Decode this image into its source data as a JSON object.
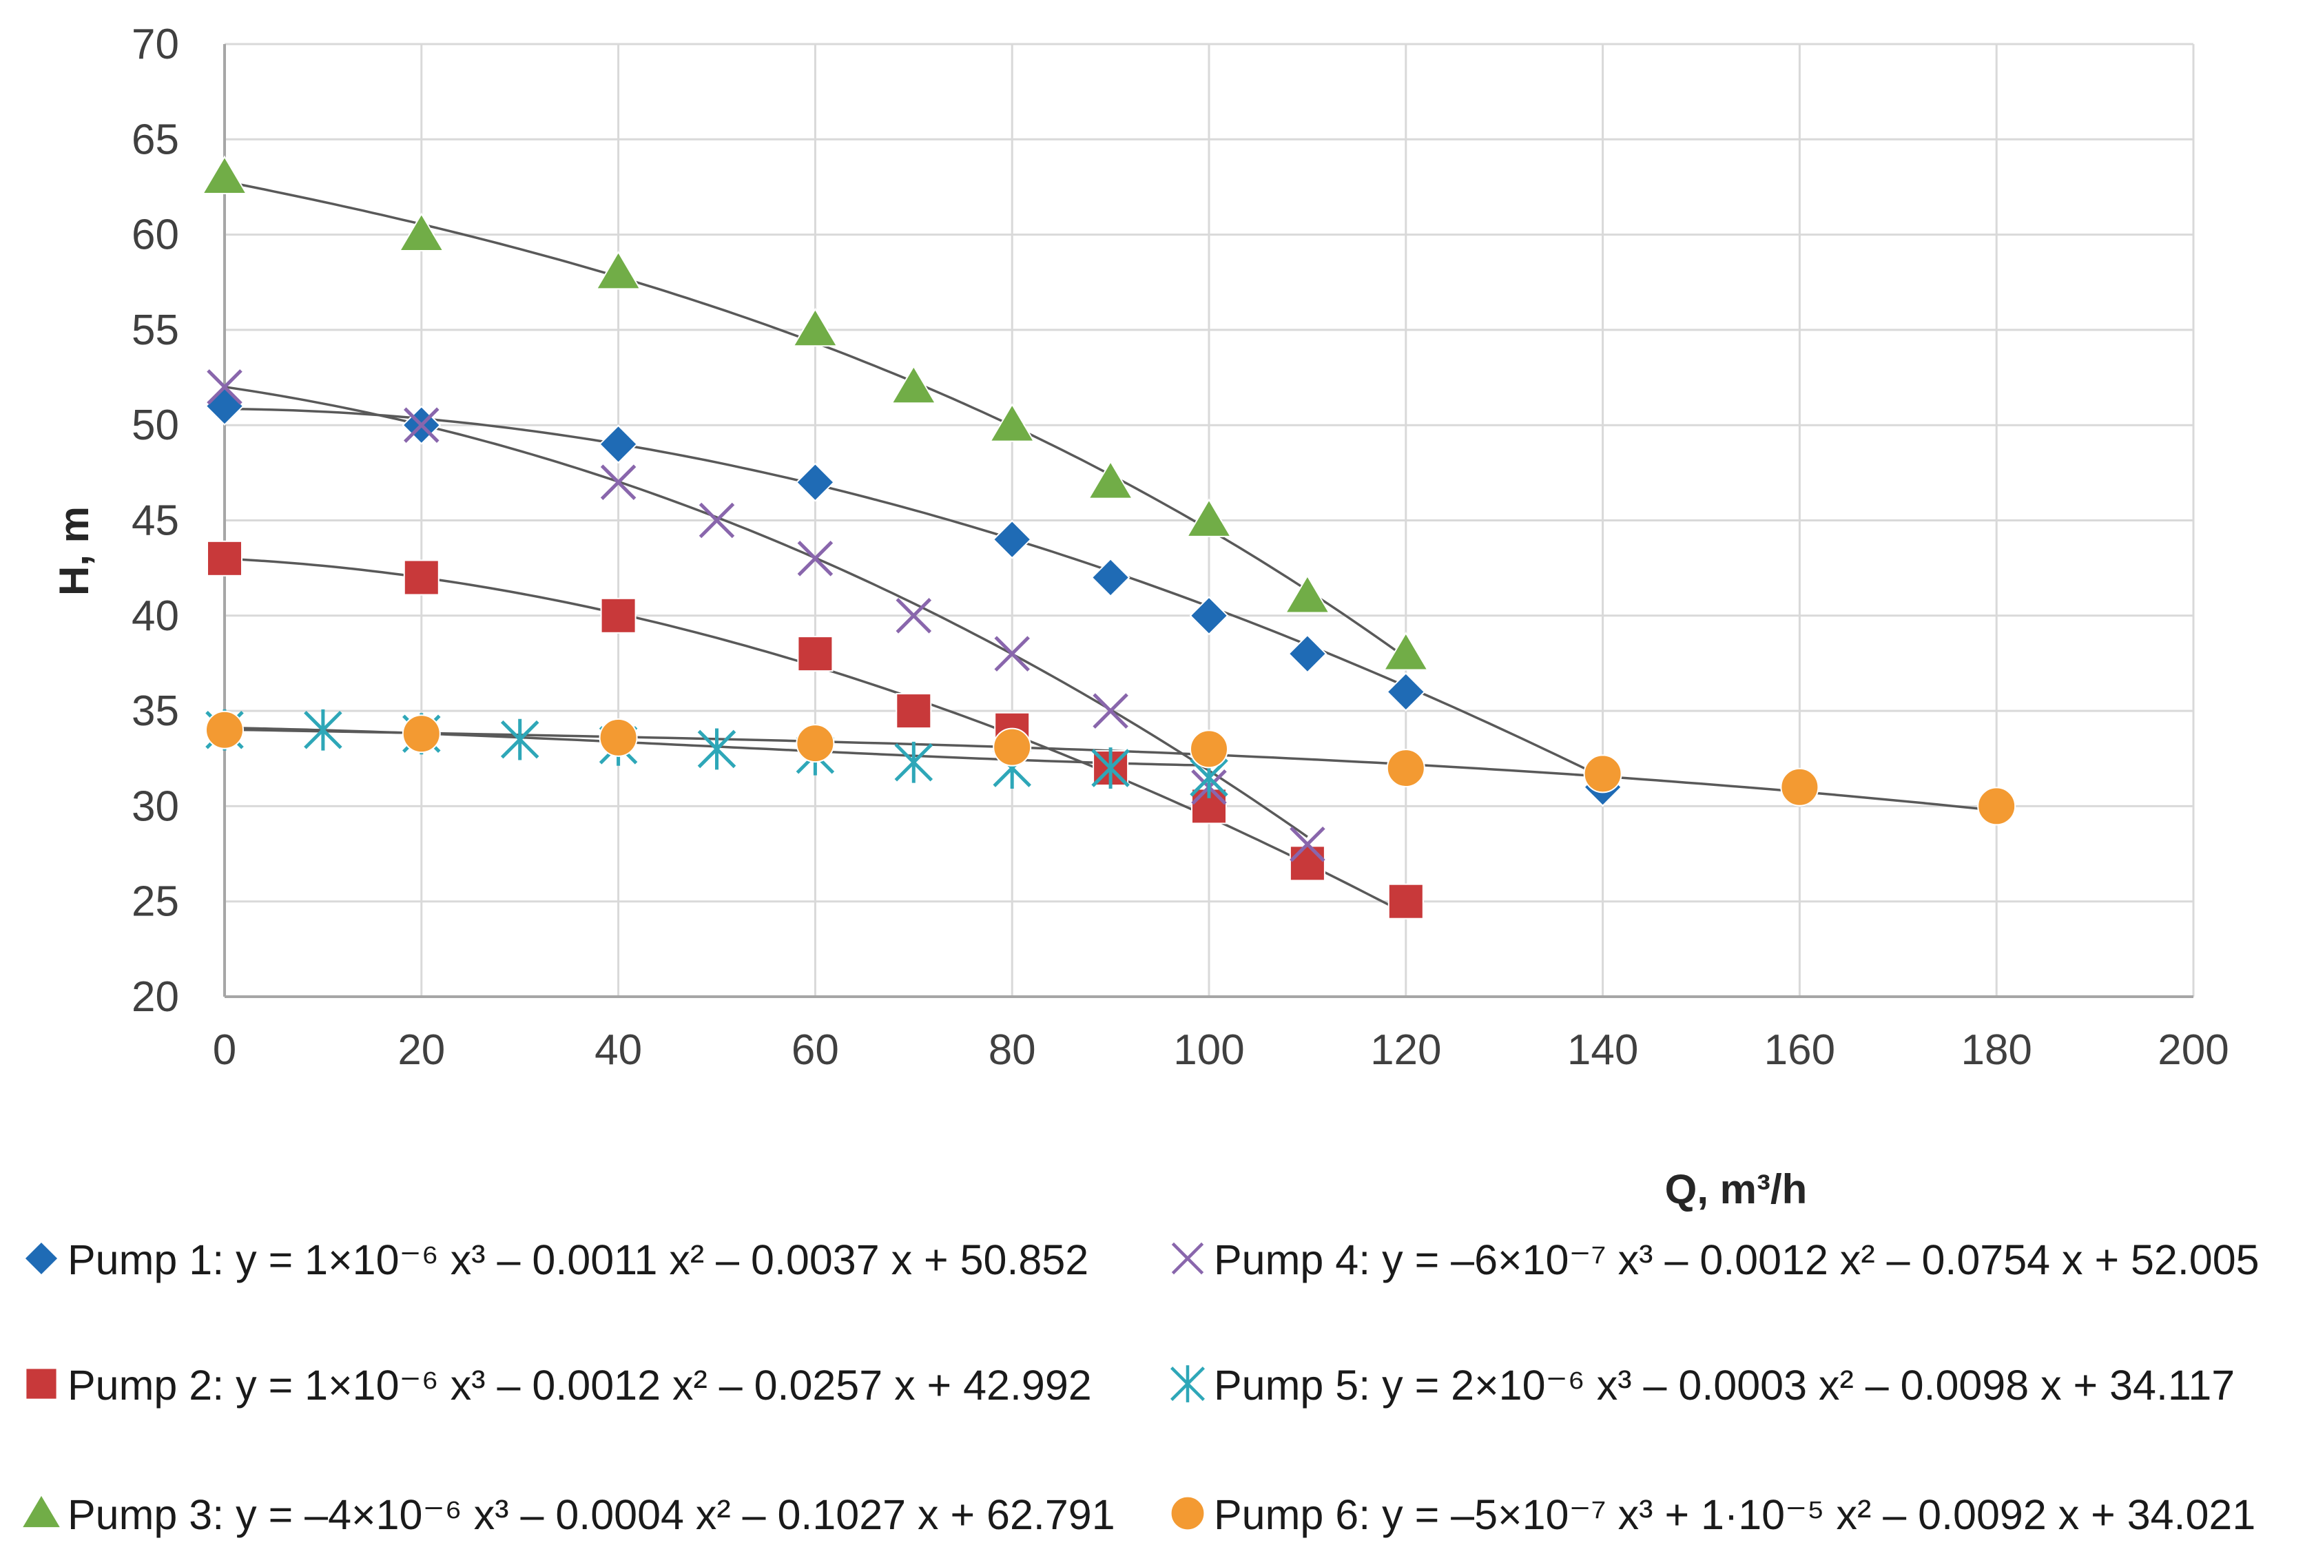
{
  "chart_data": {
    "type": "scatter",
    "title": "",
    "xlabel": "Q, m³/h",
    "ylabel": "H, m",
    "xlim": [
      0,
      200
    ],
    "ylim": [
      20,
      70
    ],
    "xticks": [
      "0",
      "20",
      "40",
      "60",
      "80",
      "100",
      "120",
      "140",
      "160",
      "180",
      "200"
    ],
    "yticks": [
      "20",
      "25",
      "30",
      "35",
      "40",
      "45",
      "50",
      "55",
      "60",
      "65",
      "70"
    ],
    "grid": true,
    "legend_position": "bottom",
    "trendline_color": "#595959",
    "series": [
      {
        "name": "Pump 1",
        "marker": "diamond",
        "color": "#1F6BB5",
        "legend_label": "Pump 1: y = 1×10⁻⁶ x³ – 0.0011 x² – 0.0037 x + 50.852",
        "coefficients": [
          1e-06,
          -0.0011,
          -0.0037,
          50.852
        ],
        "trend_range": [
          0,
          140
        ],
        "x": [
          0,
          20,
          40,
          60,
          80,
          90,
          100,
          110,
          120,
          140
        ],
        "y": [
          51,
          50,
          49,
          47,
          44,
          42,
          40,
          38,
          36,
          31
        ]
      },
      {
        "name": "Pump 2",
        "marker": "square",
        "color": "#C8393A",
        "legend_label": "Pump 2: y = 1×10⁻⁶ x³ – 0.0012 x² – 0.0257 x + 42.992",
        "coefficients": [
          1e-06,
          -0.0012,
          -0.0257,
          42.992
        ],
        "trend_range": [
          0,
          120
        ],
        "x": [
          0,
          20,
          40,
          60,
          70,
          80,
          90,
          100,
          110,
          120
        ],
        "y": [
          43,
          42,
          40,
          38,
          35,
          34,
          32,
          30,
          27,
          25
        ]
      },
      {
        "name": "Pump 3",
        "marker": "triangle",
        "color": "#71AD47",
        "legend_label": "Pump 3: y = –4×10⁻⁶ x³ – 0.0004 x² – 0.1027 x + 62.791",
        "coefficients": [
          -4e-06,
          -0.0004,
          -0.1027,
          62.791
        ],
        "trend_range": [
          0,
          120
        ],
        "x": [
          0,
          20,
          40,
          60,
          70,
          80,
          90,
          100,
          110,
          120
        ],
        "y": [
          63,
          60,
          58,
          55,
          52,
          50,
          47,
          45,
          41,
          38
        ]
      },
      {
        "name": "Pump 4",
        "marker": "x",
        "color": "#8966AC",
        "legend_label": "Pump 4: y = –6×10⁻⁷ x³ – 0.0012 x² – 0.0754 x + 52.005",
        "coefficients": [
          -6e-07,
          -0.0012,
          -0.0754,
          52.005
        ],
        "trend_range": [
          0,
          110
        ],
        "x": [
          0,
          20,
          40,
          50,
          60,
          70,
          80,
          90,
          100,
          110
        ],
        "y": [
          52,
          50,
          47,
          45,
          43,
          40,
          38,
          35,
          31,
          28
        ]
      },
      {
        "name": "Pump 5",
        "marker": "asterisk",
        "color": "#2EA7B8",
        "legend_label": "Pump 5: y = 2×10⁻⁶ x³ – 0.0003 x² – 0.0098 x + 34.117",
        "coefficients": [
          2e-06,
          -0.0003,
          -0.0098,
          34.117
        ],
        "trend_range": [
          0,
          100
        ],
        "x": [
          0,
          10,
          20,
          30,
          40,
          50,
          60,
          70,
          80,
          90,
          100
        ],
        "y": [
          34,
          34,
          33.8,
          33.5,
          33.2,
          33,
          32.7,
          32.3,
          32,
          32,
          31.5
        ]
      },
      {
        "name": "Pump 6",
        "marker": "circle",
        "color": "#F39A32",
        "legend_label": "Pump 6: y = –5×10⁻⁷ x³ + 1·10⁻⁵ x² – 0.0092 x + 34.021",
        "coefficients": [
          -5e-07,
          1e-05,
          -0.0092,
          34.021
        ],
        "trend_range": [
          0,
          180
        ],
        "x": [
          0,
          20,
          40,
          60,
          80,
          100,
          120,
          140,
          160,
          180
        ],
        "y": [
          34,
          33.8,
          33.6,
          33.3,
          33.1,
          33,
          32,
          31.7,
          31,
          30
        ]
      }
    ]
  }
}
